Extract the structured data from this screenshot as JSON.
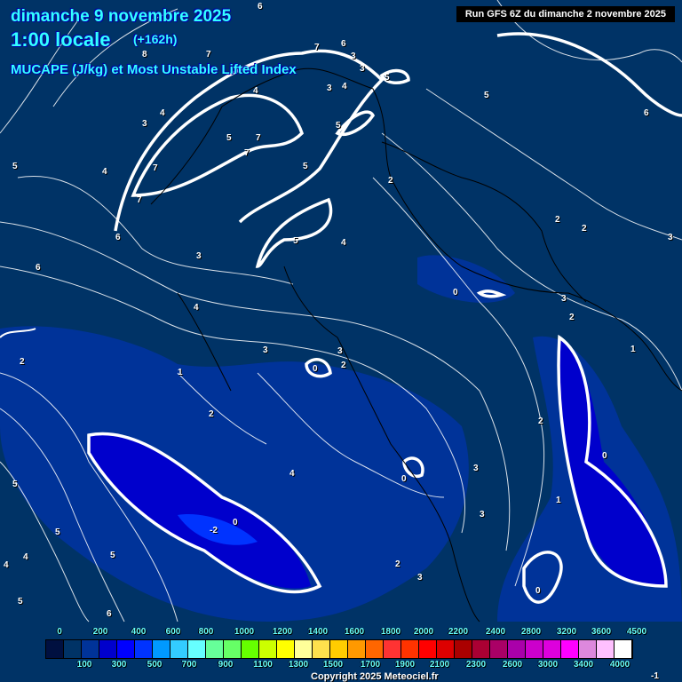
{
  "header": {
    "date": "dimanche 9 novembre 2025",
    "time": "1:00 locale",
    "lead": "(+162h)",
    "parameter": "MUCAPE (J/kg) et Most Unstable Lifted Index",
    "run": "Run GFS 6Z du dimanche 2 novembre 2025"
  },
  "legend": {
    "colors": [
      "#001040",
      "#003366",
      "#003399",
      "#0000cc",
      "#0000ff",
      "#0033ff",
      "#0099ff",
      "#33ccff",
      "#66ffff",
      "#66ff99",
      "#66ff66",
      "#66ff00",
      "#ccff00",
      "#ffff00",
      "#ffff99",
      "#ffe14d",
      "#ffcc00",
      "#ff9900",
      "#ff6600",
      "#ff3333",
      "#ff3300",
      "#ff0000",
      "#dd0000",
      "#aa0000",
      "#aa0033",
      "#aa0066",
      "#aa00aa",
      "#cc00cc",
      "#dd00dd",
      "#ff00ff",
      "#dd88dd",
      "#ffc0ff",
      "#ffffff"
    ],
    "top_labels": [
      "0",
      "200",
      "400",
      "600",
      "800",
      "1000",
      "1200",
      "1400",
      "1600",
      "1800",
      "2000",
      "2200",
      "2400",
      "2800",
      "3200",
      "3600",
      "4500"
    ],
    "bottom_labels": [
      "100",
      "300",
      "500",
      "700",
      "900",
      "1100",
      "1300",
      "1500",
      "1700",
      "1900",
      "2100",
      "2300",
      "2600",
      "3000",
      "3400",
      "4000"
    ]
  },
  "lifted_index_labels": [
    "6",
    "8",
    "7",
    "6",
    "7",
    "3",
    "3",
    "3",
    "4",
    "5",
    "4",
    "5",
    "3",
    "4",
    "6",
    "5",
    "7",
    "7",
    "5",
    "5",
    "5",
    "4",
    "7",
    "7",
    "2",
    "2",
    "2",
    "3",
    "6",
    "5",
    "3",
    "4",
    "4",
    "6",
    "3",
    "0",
    "2",
    "1",
    "3",
    "0",
    "2",
    "2",
    "2",
    "0",
    "2",
    "1",
    "0",
    "1",
    "-2",
    "0",
    "4",
    "3",
    "3",
    "3",
    "5",
    "5",
    "4",
    "5",
    "4",
    "5",
    "6",
    "2",
    "3",
    "0",
    "-1"
  ],
  "copyright": "Copyright 2025 Meteociel.fr"
}
